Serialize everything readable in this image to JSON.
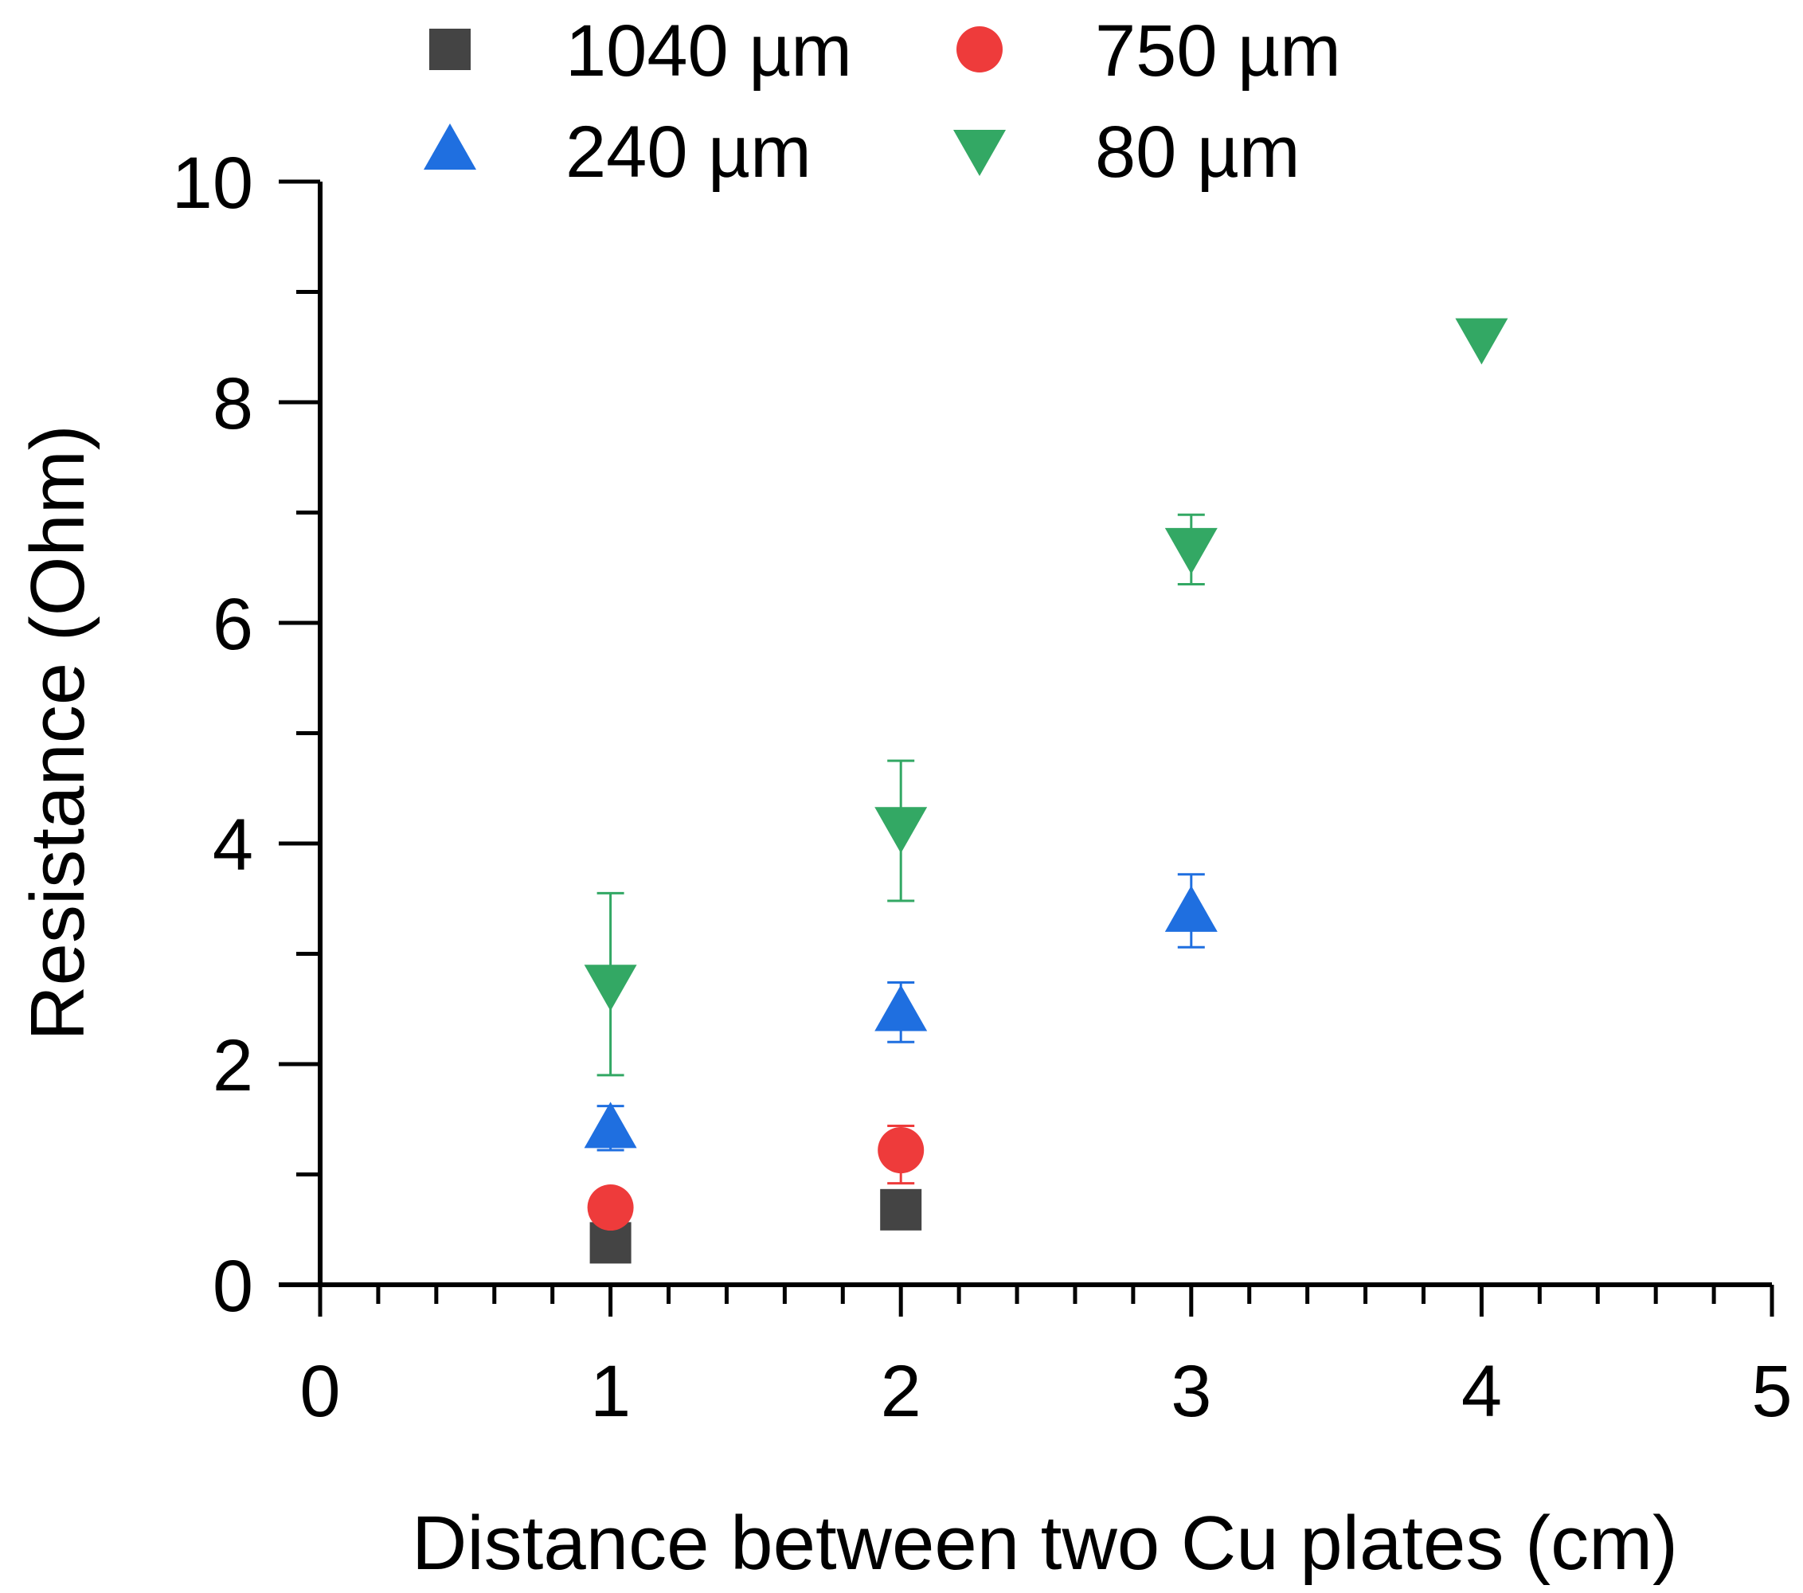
{
  "chart_data": {
    "type": "scatter",
    "title": "",
    "xlabel": "Distance between two Cu plates (cm)",
    "ylabel": "Resistance (Ohm)",
    "xlim": [
      0,
      5
    ],
    "ylim": [
      0,
      10
    ],
    "xticks": [
      0,
      1,
      2,
      3,
      4,
      5
    ],
    "yticks": [
      0,
      2,
      4,
      6,
      8,
      10
    ],
    "x_minor_step": 0.2,
    "y_minor_step": 1,
    "grid": false,
    "legend_position": "top",
    "series": [
      {
        "name": "1040 µm",
        "marker": "square",
        "color": "#444444",
        "points": [
          {
            "x": 1,
            "y": 0.38,
            "err_low": 0.38,
            "err_high": 0.38
          },
          {
            "x": 2,
            "y": 0.68,
            "err_low": 0.68,
            "err_high": 0.68
          }
        ]
      },
      {
        "name": "750 µm",
        "marker": "circle",
        "color": "#ee3b3b",
        "points": [
          {
            "x": 1,
            "y": 0.7,
            "err_low": 0.7,
            "err_high": 0.7
          },
          {
            "x": 2,
            "y": 1.22,
            "err_low": 0.92,
            "err_high": 1.44
          }
        ]
      },
      {
        "name": "240 µm",
        "marker": "triangle-up",
        "color": "#1f6fe0",
        "points": [
          {
            "x": 1,
            "y": 1.42,
            "err_low": 1.22,
            "err_high": 1.62
          },
          {
            "x": 2,
            "y": 2.48,
            "err_low": 2.2,
            "err_high": 2.74
          },
          {
            "x": 3,
            "y": 3.38,
            "err_low": 3.06,
            "err_high": 3.72
          }
        ]
      },
      {
        "name": "80 µm",
        "marker": "triangle-down",
        "color": "#33a864",
        "points": [
          {
            "x": 1,
            "y": 2.72,
            "err_low": 1.9,
            "err_high": 3.55
          },
          {
            "x": 2,
            "y": 4.15,
            "err_low": 3.48,
            "err_high": 4.75
          },
          {
            "x": 3,
            "y": 6.68,
            "err_low": 6.35,
            "err_high": 6.98
          },
          {
            "x": 4,
            "y": 8.58,
            "err_low": 8.58,
            "err_high": 8.58
          }
        ]
      }
    ]
  }
}
